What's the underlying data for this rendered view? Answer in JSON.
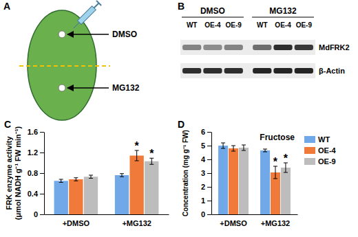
{
  "chart_data": [
    {
      "type": "bar",
      "title": "C",
      "y_label": [
        "FRK enzyme activity",
        "(μmol NADH g⁻¹ FW min⁻¹)"
      ],
      "categories": [
        "+DMSO",
        "+MG132"
      ],
      "series": [
        {
          "name": "WT",
          "color": "#70a8e8",
          "values": [
            0.65,
            0.76
          ],
          "errors": [
            0.03,
            0.03
          ]
        },
        {
          "name": "OE-4",
          "color": "#f07a3a",
          "values": [
            0.68,
            1.14
          ],
          "errors": [
            0.03,
            0.1
          ]
        },
        {
          "name": "OE-9",
          "color": "#bdbdbd",
          "values": [
            0.73,
            1.03
          ],
          "errors": [
            0.03,
            0.06
          ]
        }
      ],
      "ylim": [
        0,
        1.6
      ],
      "yticks": [
        0,
        0.4,
        0.8,
        1.2,
        1.6
      ],
      "annotations": [
        {
          "text": "*",
          "series": "OE-4",
          "category": "+MG132"
        },
        {
          "text": "*",
          "series": "OE-9",
          "category": "+MG132"
        }
      ]
    },
    {
      "type": "bar",
      "title": "D",
      "y_label": [
        "Concentration (mg g⁻¹ FW)"
      ],
      "categories": [
        "+DMSO",
        "+MG132"
      ],
      "series": [
        {
          "name": "WT",
          "color": "#70a8e8",
          "values": [
            5.0,
            4.65
          ],
          "errors": [
            0.2,
            0.1
          ]
        },
        {
          "name": "OE-4",
          "color": "#f07a3a",
          "values": [
            4.8,
            3.05
          ],
          "errors": [
            0.2,
            0.45
          ]
        },
        {
          "name": "OE-9",
          "color": "#bdbdbd",
          "values": [
            4.85,
            3.4
          ],
          "errors": [
            0.2,
            0.35
          ]
        }
      ],
      "ylim": [
        0,
        6
      ],
      "yticks": [
        0,
        1,
        2,
        3,
        4,
        5,
        6
      ],
      "legend": "right",
      "annotations": [
        {
          "text": "Fructose"
        },
        {
          "text": "*",
          "series": "OE-4",
          "category": "+MG132"
        },
        {
          "text": "*",
          "series": "OE-9",
          "category": "+MG132"
        }
      ]
    }
  ],
  "panel_a": {
    "title": "A",
    "upper": "DMSO",
    "lower": "MG132"
  },
  "panel_b": {
    "title": "B",
    "groups": [
      {
        "label": "DMSO",
        "lanes": [
          "WT",
          "OE-4",
          "OE-9"
        ]
      },
      {
        "label": "MG132",
        "lanes": [
          "WT",
          "OE-4",
          "OE-9"
        ]
      }
    ],
    "rows": [
      {
        "label": "MdFRK2",
        "intensity": [
          0.5,
          0.45,
          0.5,
          0.6,
          0.9,
          0.85
        ]
      },
      {
        "label": "β-Actin",
        "intensity": [
          0.9,
          0.9,
          0.9,
          0.95,
          0.95,
          0.95
        ]
      }
    ]
  }
}
